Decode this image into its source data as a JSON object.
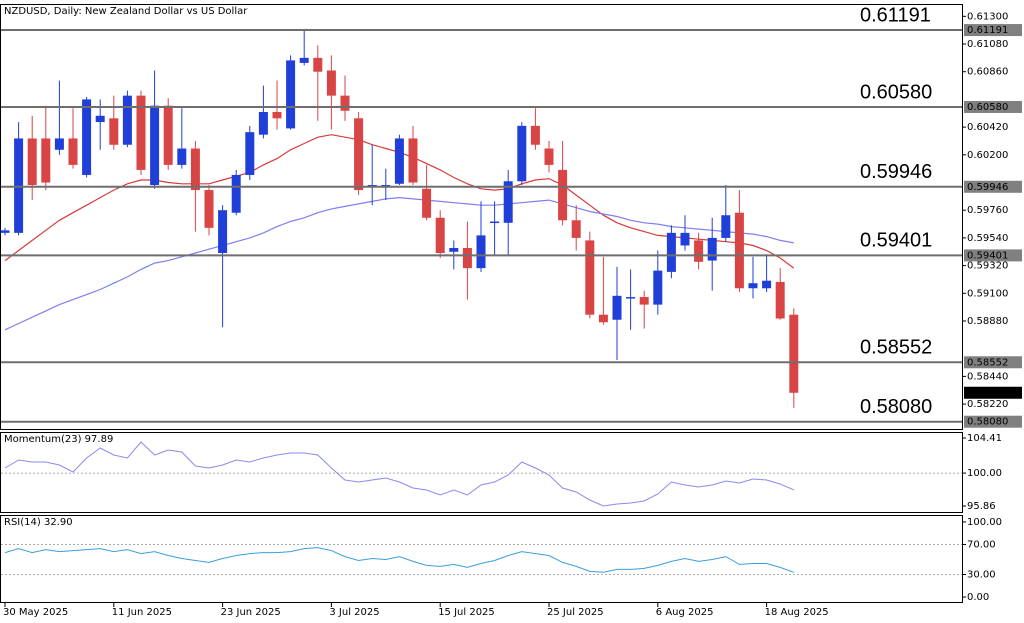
{
  "chart_data": [
    {
      "type": "candlestick",
      "title": "NZDUSD, Daily:  New Zealand Dollar vs US Dollar",
      "categories": [
        "30 May 2025",
        null,
        null,
        null,
        null,
        null,
        null,
        null,
        "11 Jun 2025",
        null,
        null,
        null,
        null,
        null,
        null,
        null,
        "23 Jun 2025",
        null,
        null,
        null,
        null,
        null,
        null,
        null,
        "3 Jul 2025",
        null,
        null,
        null,
        null,
        null,
        null,
        null,
        "15 Jul 2025",
        null,
        null,
        null,
        null,
        null,
        null,
        null,
        "25 Jul 2025",
        null,
        null,
        null,
        null,
        null,
        null,
        null,
        "6 Aug 2025",
        null,
        null,
        null,
        null,
        null,
        null,
        null,
        "18 Aug 2025",
        null,
        null
      ],
      "open": [
        0.5958,
        0.5958,
        0.6033,
        0.6033,
        0.6024,
        0.6033,
        0.6004,
        0.6046,
        0.6049,
        0.6028,
        0.6067,
        0.5996,
        0.6059,
        0.6012,
        0.6025,
        0.5992,
        0.5942,
        0.5974,
        0.6004,
        0.6036,
        0.6054,
        0.6041,
        0.6093,
        0.6097,
        0.6087,
        0.6067,
        0.6049,
        0.5994,
        0.5994,
        0.5997,
        0.6033,
        0.5993,
        0.597,
        0.5943,
        0.5946,
        0.593,
        0.5966,
        0.5966,
        0.5999,
        0.6043,
        0.6025,
        0.6008,
        0.5968,
        0.5952,
        0.5893,
        0.5889,
        0.5906,
        0.5907,
        0.5901,
        0.5927,
        0.5948,
        0.5952,
        0.5936,
        0.5954,
        0.5974,
        0.5914,
        0.5914,
        0.5919,
        0.5893
      ],
      "high": [
        0.5962,
        0.6046,
        0.6051,
        0.6059,
        0.6079,
        0.6057,
        0.6066,
        0.6064,
        0.6067,
        0.6071,
        0.6071,
        0.6087,
        0.6065,
        0.6057,
        0.6031,
        0.5996,
        0.598,
        0.6008,
        0.6043,
        0.6075,
        0.6079,
        0.6099,
        0.612,
        0.6107,
        0.6099,
        0.6083,
        0.6054,
        0.6028,
        0.6009,
        0.6036,
        0.6043,
        0.6012,
        0.5976,
        0.5952,
        0.5967,
        0.5983,
        0.5983,
        0.6008,
        0.6046,
        0.6057,
        0.6031,
        0.6031,
        0.598,
        0.5959,
        0.5939,
        0.5931,
        0.5929,
        0.5912,
        0.5944,
        0.5964,
        0.5972,
        0.5958,
        0.597,
        0.5996,
        0.5992,
        0.5939,
        0.5941,
        0.593,
        0.5898
      ],
      "low": [
        0.5956,
        0.5956,
        0.5984,
        0.5992,
        0.602,
        0.6009,
        0.6002,
        0.6024,
        0.6024,
        0.6026,
        0.6004,
        0.5993,
        0.6008,
        0.6009,
        0.5959,
        0.5956,
        0.5883,
        0.5972,
        0.6,
        0.6033,
        0.604,
        0.604,
        0.6091,
        0.6047,
        0.604,
        0.6047,
        0.5988,
        0.598,
        0.5984,
        0.5996,
        0.5996,
        0.5968,
        0.5938,
        0.5929,
        0.5905,
        0.5927,
        0.594,
        0.594,
        0.5996,
        0.6024,
        0.6006,
        0.5964,
        0.5944,
        0.589,
        0.5885,
        0.5857,
        0.5881,
        0.5882,
        0.5893,
        0.5922,
        0.5944,
        0.5929,
        0.5912,
        0.5951,
        0.5911,
        0.5906,
        0.5911,
        0.5889,
        0.5819
      ],
      "close": [
        0.596,
        0.6033,
        0.5996,
        0.5998,
        0.6033,
        0.6012,
        0.6064,
        0.6051,
        0.6028,
        0.6067,
        0.6008,
        0.6059,
        0.6012,
        0.6025,
        0.5992,
        0.5962,
        0.5976,
        0.6004,
        0.6038,
        0.6054,
        0.6049,
        0.6095,
        0.6097,
        0.6086,
        0.6067,
        0.6055,
        0.5992,
        0.5996,
        0.5996,
        0.6033,
        0.5998,
        0.597,
        0.5942,
        0.5946,
        0.593,
        0.5956,
        0.5967,
        0.5999,
        0.6043,
        0.6028,
        0.6012,
        0.5968,
        0.5954,
        0.5893,
        0.5887,
        0.5908,
        0.5907,
        0.5901,
        0.5928,
        0.5958,
        0.5958,
        0.5935,
        0.5954,
        0.5972,
        0.5914,
        0.5918,
        0.592,
        0.589,
        0.5831
      ],
      "up_color": "#1f3fd8",
      "down_color": "#d94444",
      "lines": [
        {
          "color": "#d83a3a",
          "values": [
            0.5936,
            0.5944,
            0.5952,
            0.596,
            0.5968,
            0.5974,
            0.598,
            0.5986,
            0.5992,
            0.5997,
            0.6,
            0.6,
            0.5998,
            0.5997,
            0.5997,
            0.5997,
            0.6,
            0.6003,
            0.6006,
            0.6012,
            0.6017,
            0.6024,
            0.6029,
            0.6034,
            0.6036,
            0.6034,
            0.6032,
            0.6028,
            0.6025,
            0.6022,
            0.6018,
            0.6013,
            0.6008,
            0.6002,
            0.5997,
            0.5993,
            0.5992,
            0.5993,
            0.5997,
            0.6,
            0.6001,
            0.5996,
            0.5988,
            0.598,
            0.5972,
            0.5966,
            0.5962,
            0.5959,
            0.5956,
            0.5955,
            0.5954,
            0.5953,
            0.5952,
            0.5951,
            0.595,
            0.5948,
            0.5944,
            0.5938,
            0.593
          ]
        },
        {
          "color": "#7f7ff0",
          "values": [
            0.5881,
            0.5886,
            0.5891,
            0.5896,
            0.5901,
            0.5905,
            0.5909,
            0.5913,
            0.5918,
            0.5923,
            0.5929,
            0.5934,
            0.5936,
            0.5939,
            0.5942,
            0.5945,
            0.5948,
            0.5951,
            0.5954,
            0.5958,
            0.5963,
            0.5967,
            0.597,
            0.5974,
            0.5977,
            0.5979,
            0.5981,
            0.5983,
            0.5985,
            0.5986,
            0.5985,
            0.5984,
            0.5983,
            0.5982,
            0.5981,
            0.598,
            0.598,
            0.5981,
            0.5982,
            0.5983,
            0.5984,
            0.5981,
            0.5978,
            0.5975,
            0.5973,
            0.5971,
            0.5968,
            0.5966,
            0.5965,
            0.5963,
            0.5962,
            0.5961,
            0.596,
            0.5959,
            0.5958,
            0.5957,
            0.5955,
            0.5952,
            0.595
          ]
        }
      ],
      "levels": [
        0.61191,
        {
          "value": 0.6058,
          "label": "0.60580"
        },
        0.59946,
        0.59401,
        0.58552,
        {
          "value": 0.5808,
          "label": "0.58080"
        }
      ],
      "level_color": "#808080",
      "last_price": {
        "value": 0.5831,
        "label": "0.58310"
      },
      "ylim": [
        0.5803,
        0.6139
      ],
      "yticks": [
        {
          "value": 0.613,
          "label": "0.61300"
        },
        {
          "value": 0.6108,
          "label": "0.61080"
        },
        {
          "value": 0.6086,
          "label": "0.60860"
        },
        {
          "value": 0.6042,
          "label": "0.60420"
        },
        {
          "value": 0.602,
          "label": "0.60200"
        },
        {
          "value": 0.5976,
          "label": "0.59760"
        },
        {
          "value": 0.5954,
          "label": "0.59540"
        },
        {
          "value": 0.5932,
          "label": "0.59320"
        },
        {
          "value": 0.591,
          "label": "0.59100"
        },
        {
          "value": 0.5888,
          "label": "0.58880"
        },
        {
          "value": 0.5844,
          "label": "0.58440"
        },
        {
          "value": 0.5822,
          "label": "0.58220"
        }
      ]
    },
    {
      "type": "line",
      "title": "Momentum(23) 97.89",
      "color": "#8a8af0",
      "values": [
        100.64,
        101.65,
        101.4,
        101.4,
        101.02,
        100.14,
        101.9,
        103.16,
        102.28,
        101.9,
        103.91,
        102.28,
        102.9,
        102.65,
        100.89,
        100.64,
        101.02,
        101.65,
        101.4,
        101.9,
        102.28,
        102.53,
        102.53,
        102.28,
        100.64,
        99.13,
        98.88,
        99.13,
        99.38,
        98.88,
        98.13,
        97.88,
        97.25,
        97.88,
        97.25,
        98.5,
        98.88,
        99.76,
        101.4,
        100.64,
        99.76,
        98.13,
        97.62,
        96.62,
        95.86,
        96.11,
        96.24,
        96.49,
        97.37,
        98.88,
        98.5,
        98.25,
        98.5,
        99.01,
        98.75,
        99.26,
        99.13,
        98.63,
        97.89
      ],
      "ylim": [
        95.11,
        105.04
      ],
      "yticks": [
        104.41,
        {
          "value": 100,
          "label": "100.00"
        },
        95.86
      ],
      "grid": "dashed"
    },
    {
      "type": "line",
      "title": "RSI(14) 32.90",
      "color": "#3a9fdc",
      "values": [
        59.2,
        64.5,
        59.2,
        63.2,
        60.5,
        61.8,
        63.2,
        64.5,
        60.5,
        63.2,
        57.9,
        60.5,
        55.3,
        51.3,
        48.7,
        46.1,
        51.3,
        55.3,
        57.9,
        59.2,
        59.2,
        60.5,
        64.5,
        65.8,
        61.8,
        53.9,
        48.7,
        51.3,
        50.0,
        53.9,
        47.4,
        42.1,
        40.8,
        43.4,
        39.5,
        44.7,
        48.7,
        55.3,
        60.5,
        57.9,
        55.3,
        46.1,
        40.8,
        34.2,
        32.9,
        36.8,
        36.8,
        38.2,
        42.1,
        47.4,
        51.3,
        47.4,
        50.0,
        53.9,
        43.4,
        44.7,
        44.7,
        39.5,
        32.9
      ],
      "ylim": [
        -6.6,
        107.9
      ],
      "yticks": [
        {
          "value": 100,
          "label": "100.00"
        },
        {
          "value": 70,
          "label": "70.00"
        },
        {
          "value": 30,
          "label": "30.00"
        },
        {
          "value": 0,
          "label": "0.00"
        }
      ],
      "grid": "dashed"
    }
  ]
}
